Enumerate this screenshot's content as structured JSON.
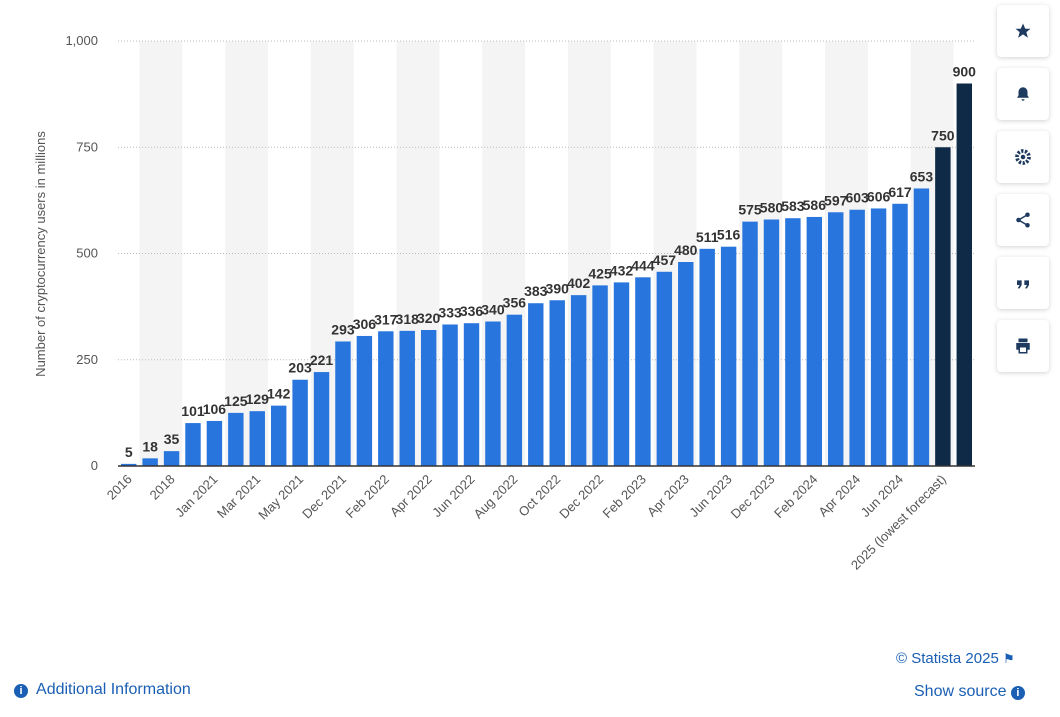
{
  "chart_data": {
    "type": "bar",
    "y_label": "Number of cryptocurrency users in millions",
    "categories": [
      "2016",
      null,
      "2018",
      null,
      "Jan 2021",
      null,
      "Mar 2021",
      null,
      "May 2021",
      null,
      "Dec 2021",
      null,
      "Feb 2022",
      null,
      "Apr 2022",
      null,
      "Jun 2022",
      null,
      "Aug 2022",
      null,
      "Oct 2022",
      null,
      "Dec 2022",
      null,
      "Feb 2023",
      null,
      "Apr 2023",
      null,
      "Jun 2023",
      null,
      "Dec 2023",
      null,
      "Feb 2024",
      null,
      "Apr 2024",
      null,
      "Jun 2024",
      null,
      "2025 (lowest forecast)",
      null
    ],
    "values": [
      5,
      18,
      35,
      101,
      106,
      125,
      129,
      142,
      203,
      221,
      293,
      306,
      317,
      318,
      320,
      333,
      336,
      340,
      356,
      383,
      390,
      402,
      425,
      432,
      444,
      457,
      480,
      511,
      516,
      575,
      580,
      583,
      586,
      597,
      603,
      606,
      617,
      653,
      750,
      900
    ],
    "colors": [
      "#2876dd",
      "#2876dd",
      "#2876dd",
      "#2876dd",
      "#2876dd",
      "#2876dd",
      "#2876dd",
      "#2876dd",
      "#2876dd",
      "#2876dd",
      "#2876dd",
      "#2876dd",
      "#2876dd",
      "#2876dd",
      "#2876dd",
      "#2876dd",
      "#2876dd",
      "#2876dd",
      "#2876dd",
      "#2876dd",
      "#2876dd",
      "#2876dd",
      "#2876dd",
      "#2876dd",
      "#2876dd",
      "#2876dd",
      "#2876dd",
      "#2876dd",
      "#2876dd",
      "#2876dd",
      "#2876dd",
      "#2876dd",
      "#2876dd",
      "#2876dd",
      "#2876dd",
      "#2876dd",
      "#2876dd",
      "#2876dd",
      "#0f2a47",
      "#0f2a47"
    ],
    "ylim": [
      0,
      1000
    ],
    "yticks": [
      0,
      250,
      500,
      750,
      {
        "value": 1000,
        "label": "1,000"
      }
    ],
    "grid": true
  },
  "footer": {
    "copyright": "© Statista 2025",
    "additional_info": "Additional Information",
    "show_source": "Show source"
  }
}
